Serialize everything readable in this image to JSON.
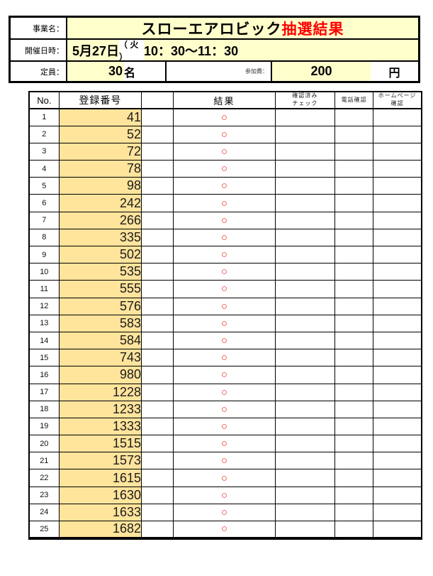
{
  "colors": {
    "pale_yellow": "#FFFFCC",
    "gold_fill": "#FFE49C",
    "title_red": "#FF0000",
    "circle_red": "#E8281E",
    "border_black": "#000000"
  },
  "info": {
    "business_label": "事業名：",
    "title_black": "スローエアロビック",
    "title_red": "抽選結果",
    "datetime_label": "開催日時：",
    "date": "5月27日",
    "weekday": "（ 火 ）",
    "time": "10：30～11：30",
    "capacity_label": "定員：",
    "capacity_value": "30",
    "capacity_unit": "名",
    "fee_label": "参加費：",
    "fee_value": "200",
    "fee_unit": "円"
  },
  "results_table": {
    "headers": {
      "no": "No.",
      "registration": "登録番号",
      "blank": "",
      "result": "結果",
      "check_line1": "確認済み",
      "check_line2": "チェック",
      "phone": "電話確認",
      "homepage_line1": "ホームページ",
      "homepage_line2": "確認"
    },
    "result_symbol": "○",
    "rows": [
      {
        "no": 1,
        "registration": 41,
        "result": "○"
      },
      {
        "no": 2,
        "registration": 52,
        "result": "○"
      },
      {
        "no": 3,
        "registration": 72,
        "result": "○"
      },
      {
        "no": 4,
        "registration": 78,
        "result": "○"
      },
      {
        "no": 5,
        "registration": 98,
        "result": "○"
      },
      {
        "no": 6,
        "registration": 242,
        "result": "○"
      },
      {
        "no": 7,
        "registration": 266,
        "result": "○"
      },
      {
        "no": 8,
        "registration": 335,
        "result": "○"
      },
      {
        "no": 9,
        "registration": 502,
        "result": "○"
      },
      {
        "no": 10,
        "registration": 535,
        "result": "○"
      },
      {
        "no": 11,
        "registration": 555,
        "result": "○"
      },
      {
        "no": 12,
        "registration": 576,
        "result": "○"
      },
      {
        "no": 13,
        "registration": 583,
        "result": "○"
      },
      {
        "no": 14,
        "registration": 584,
        "result": "○"
      },
      {
        "no": 15,
        "registration": 743,
        "result": "○"
      },
      {
        "no": 16,
        "registration": 980,
        "result": "○"
      },
      {
        "no": 17,
        "registration": 1228,
        "result": "○"
      },
      {
        "no": 18,
        "registration": 1233,
        "result": "○"
      },
      {
        "no": 19,
        "registration": 1333,
        "result": "○"
      },
      {
        "no": 20,
        "registration": 1515,
        "result": "○"
      },
      {
        "no": 21,
        "registration": 1573,
        "result": "○"
      },
      {
        "no": 22,
        "registration": 1615,
        "result": "○"
      },
      {
        "no": 23,
        "registration": 1630,
        "result": "○"
      },
      {
        "no": 24,
        "registration": 1633,
        "result": "○"
      },
      {
        "no": 25,
        "registration": 1682,
        "result": "○"
      }
    ]
  }
}
